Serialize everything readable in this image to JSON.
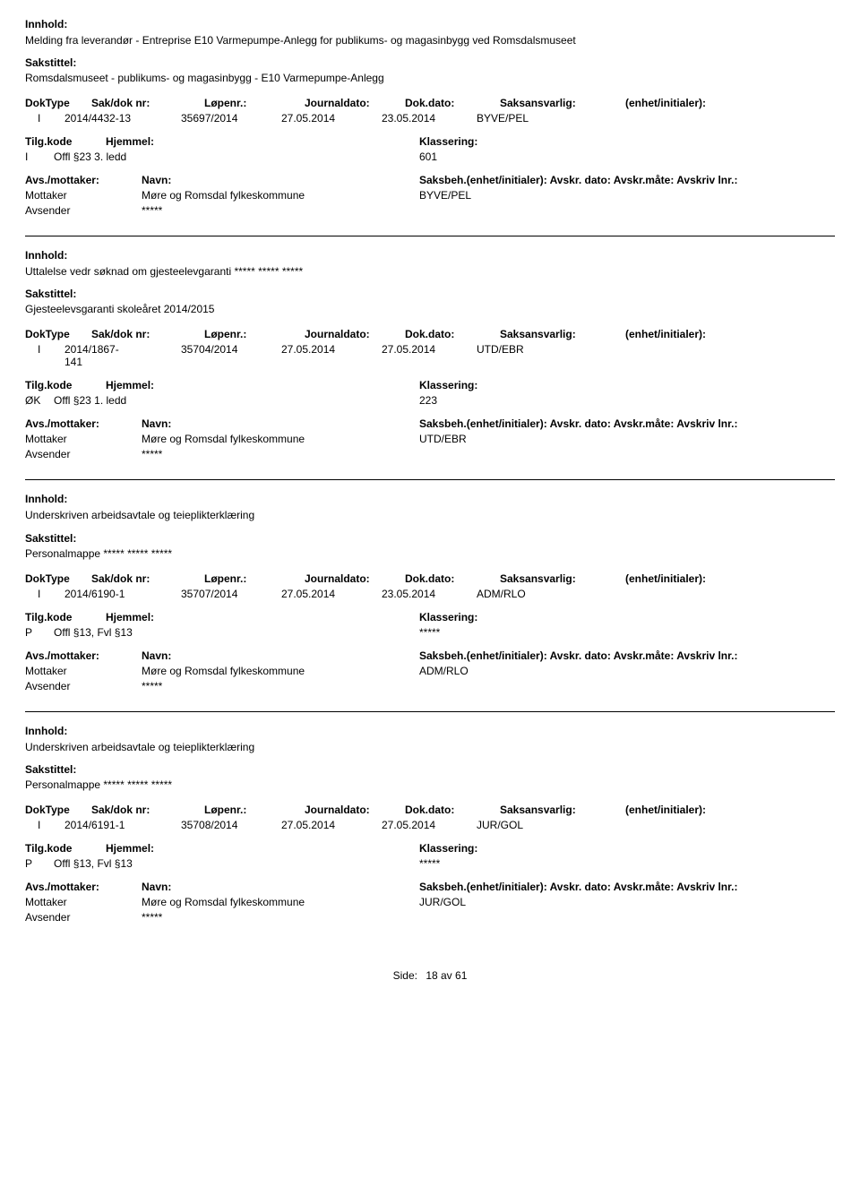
{
  "labels": {
    "innhold": "Innhold:",
    "sakstittel": "Sakstittel:",
    "doktype": "DokType",
    "sakdoknr": "Sak/dok nr:",
    "lopenr": "Løpenr.:",
    "journaldato": "Journaldato:",
    "dokdato": "Dok.dato:",
    "saksansvarlig": "Saksansvarlig:",
    "enhet": "(enhet/initialer):",
    "tilgkode": "Tilg.kode",
    "hjemmel": "Hjemmel:",
    "klassering": "Klassering:",
    "avsmottaker": "Avs./mottaker:",
    "navn": "Navn:",
    "saksbeh": "Saksbeh.(enhet/initialer): Avskr. dato:  Avskr.måte:  Avskriv lnr.:",
    "mottaker": "Mottaker",
    "avsender": "Avsender",
    "side": "Side:",
    "pagenum": "18 av  61"
  },
  "records": [
    {
      "innhold": "Melding fra leverandør - Entreprise E10 Varmepumpe-Anlegg for publikums- og magasinbygg ved Romsdalsmuseet",
      "sakstittel": "Romsdalsmuseet - publikums- og magasinbygg - E10 Varmepumpe-Anlegg",
      "doktype": "I",
      "sakdoknr": "2014/4432-13",
      "lopenr": "35697/2014",
      "journaldato": "27.05.2014",
      "dokdato": "23.05.2014",
      "saksansvarlig": "BYVE/PEL",
      "tilgkode": "I",
      "hjemmel": "Offl §23 3. ledd",
      "klassering": "601",
      "mottaker_navn": "Møre og Romsdal fylkeskommune",
      "saksbeh": "BYVE/PEL",
      "avsender_navn": "*****"
    },
    {
      "innhold": "Uttalelse vedr søknad om gjesteelevgaranti ***** ***** *****",
      "sakstittel": "Gjesteelevsgaranti skoleåret 2014/2015",
      "doktype": "I",
      "sakdoknr": "2014/1867-141",
      "lopenr": "35704/2014",
      "journaldato": "27.05.2014",
      "dokdato": "27.05.2014",
      "saksansvarlig": "UTD/EBR",
      "tilgkode": "ØK",
      "hjemmel": "Offl §23 1. ledd",
      "klassering": "223",
      "mottaker_navn": "Møre og Romsdal fylkeskommune",
      "saksbeh": "UTD/EBR",
      "avsender_navn": "*****"
    },
    {
      "innhold": "Underskriven arbeidsavtale og teieplikterklæring",
      "sakstittel": "Personalmappe ***** ***** *****",
      "doktype": "I",
      "sakdoknr": "2014/6190-1",
      "lopenr": "35707/2014",
      "journaldato": "27.05.2014",
      "dokdato": "23.05.2014",
      "saksansvarlig": "ADM/RLO",
      "tilgkode": "P",
      "hjemmel": "Offl §13, Fvl §13",
      "klassering": "*****",
      "mottaker_navn": "Møre og Romsdal fylkeskommune",
      "saksbeh": "ADM/RLO",
      "avsender_navn": "*****"
    },
    {
      "innhold": "Underskriven arbeidsavtale og teieplikterklæring",
      "sakstittel": "Personalmappe ***** ***** *****",
      "doktype": "I",
      "sakdoknr": "2014/6191-1",
      "lopenr": "35708/2014",
      "journaldato": "27.05.2014",
      "dokdato": "27.05.2014",
      "saksansvarlig": "JUR/GOL",
      "tilgkode": "P",
      "hjemmel": "Offl §13, Fvl §13",
      "klassering": "*****",
      "mottaker_navn": "Møre og Romsdal fylkeskommune",
      "saksbeh": "JUR/GOL",
      "avsender_navn": "*****"
    }
  ]
}
